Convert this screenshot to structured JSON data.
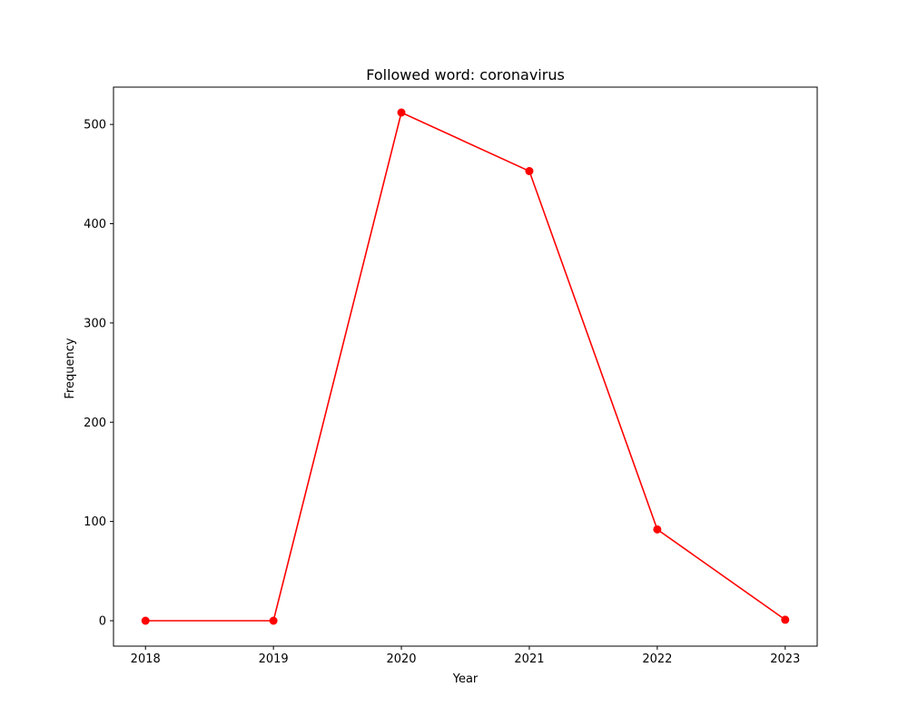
{
  "chart_data": {
    "type": "line",
    "title": "Followed word: coronavirus",
    "xlabel": "Year",
    "ylabel": "Frequency",
    "x": [
      2018,
      2019,
      2020,
      2021,
      2022,
      2023
    ],
    "series": [
      {
        "values": [
          0,
          0,
          512,
          453,
          92,
          1
        ]
      }
    ],
    "xticks": [
      "2018",
      "2019",
      "2020",
      "2021",
      "2022",
      "2023"
    ],
    "yticks": [
      0,
      100,
      200,
      300,
      400,
      500
    ],
    "xlim": [
      2017.75,
      2023.25
    ],
    "ylim": [
      -25.6,
      537.6
    ],
    "grid": false,
    "line_color": "#ff0000",
    "marker_color": "#ff0000"
  }
}
